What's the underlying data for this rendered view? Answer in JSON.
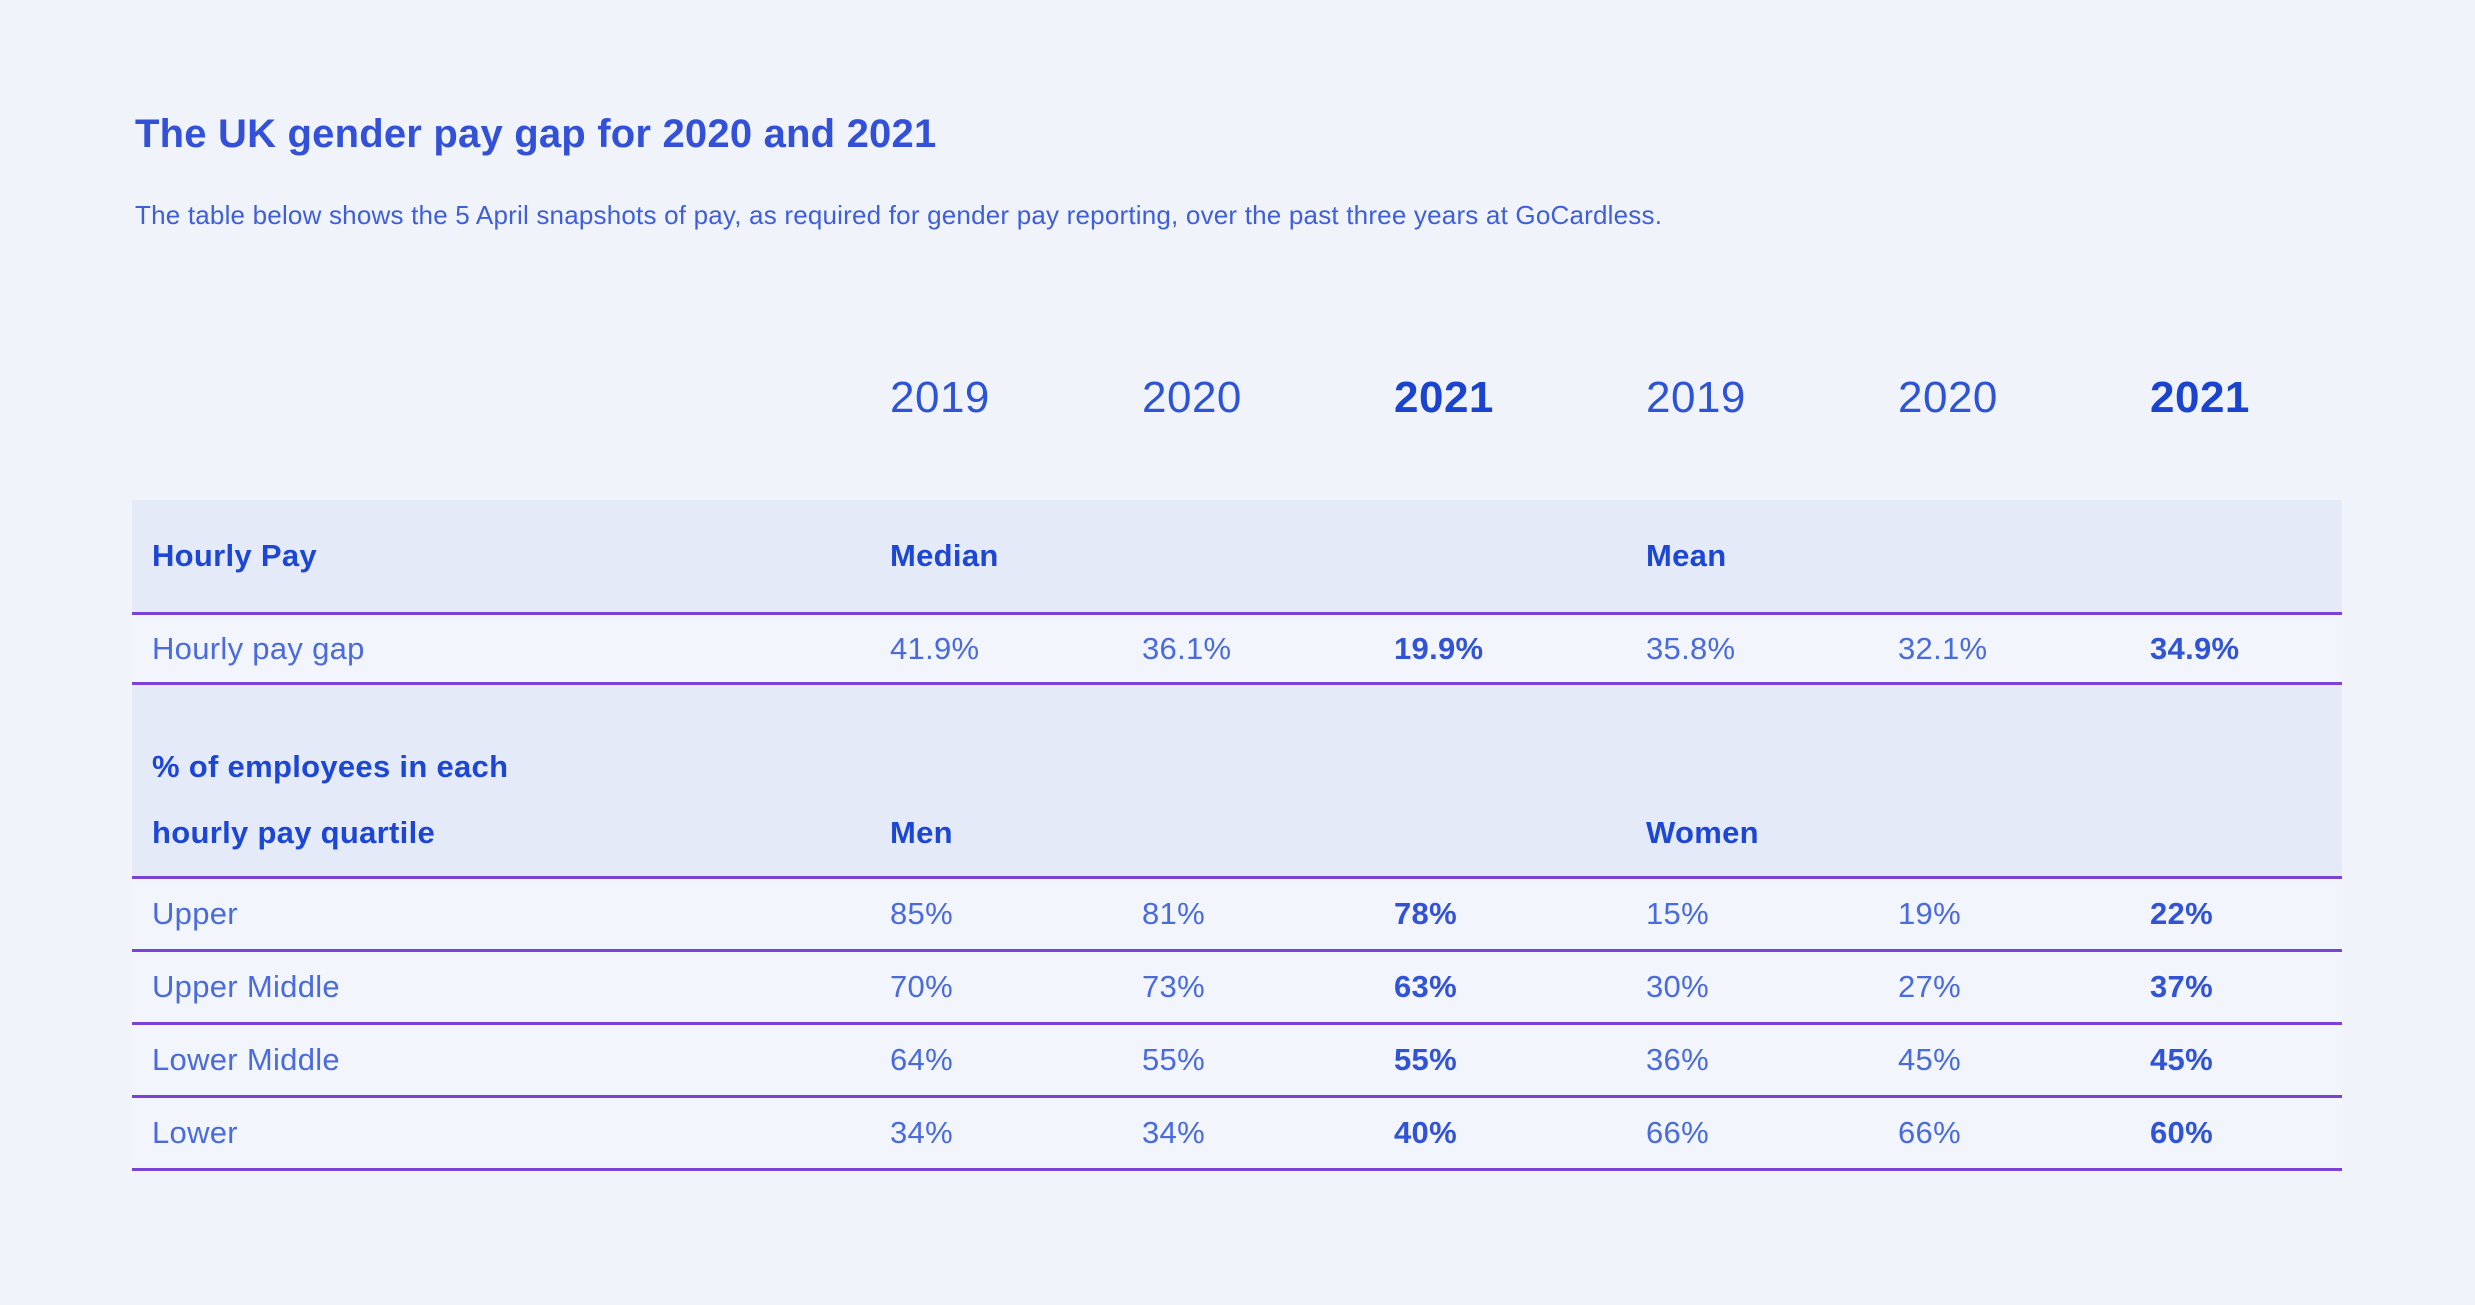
{
  "page": {
    "title": "The UK gender pay gap for 2020 and 2021",
    "subtitle": "The table below shows the 5 April snapshots of pay, as required for gender pay reporting, over the past three years at GoCardless."
  },
  "colors": {
    "page_background": "#f0f3fa",
    "header_row_background": "#e5eaf8",
    "row_border_purple": "#7b42d8",
    "title_blue": "#3251d8",
    "subtitle_blue": "#3e5fd9",
    "header_text_blue": "#1c46d4",
    "regular_text_blue": "#4a6bdc",
    "bold_value_blue": "#3153d5",
    "bold_year_blue": "#1b44ce"
  },
  "chart_data": {
    "type": "table",
    "title": "The UK gender pay gap for 2020 and 2021",
    "subtitle": "The table below shows the 5 April snapshots of pay, as required for gender pay reporting, over the past three years at GoCardless.",
    "year_columns": [
      "2019",
      "2020",
      "2021",
      "2019",
      "2020",
      "2021"
    ],
    "emphasized_columns": [
      3,
      6
    ],
    "layout_hints": {
      "grid": "horizontal purple rules between rows",
      "emphasis": "2021 columns rendered bold"
    },
    "sections": [
      {
        "header": {
          "label": "Hourly Pay",
          "left_group": "Median",
          "right_group": "Mean"
        },
        "rows": [
          {
            "label": "Hourly pay gap",
            "values": [
              "41.9%",
              "36.1%",
              "19.9%",
              "35.8%",
              "32.1%",
              "34.9%"
            ]
          }
        ]
      },
      {
        "header": {
          "label_line1": "% of employees in each",
          "label_line2": "hourly pay quartile",
          "left_group": "Men",
          "right_group": "Women"
        },
        "rows": [
          {
            "label": "Upper",
            "values": [
              "85%",
              "81%",
              "78%",
              "15%",
              "19%",
              "22%"
            ]
          },
          {
            "label": "Upper Middle",
            "values": [
              "70%",
              "73%",
              "63%",
              "30%",
              "27%",
              "37%"
            ]
          },
          {
            "label": "Lower Middle",
            "values": [
              "64%",
              "55%",
              "55%",
              "36%",
              "45%",
              "45%"
            ]
          },
          {
            "label": "Lower",
            "values": [
              "34%",
              "34%",
              "40%",
              "66%",
              "66%",
              "60%"
            ]
          }
        ]
      }
    ]
  }
}
